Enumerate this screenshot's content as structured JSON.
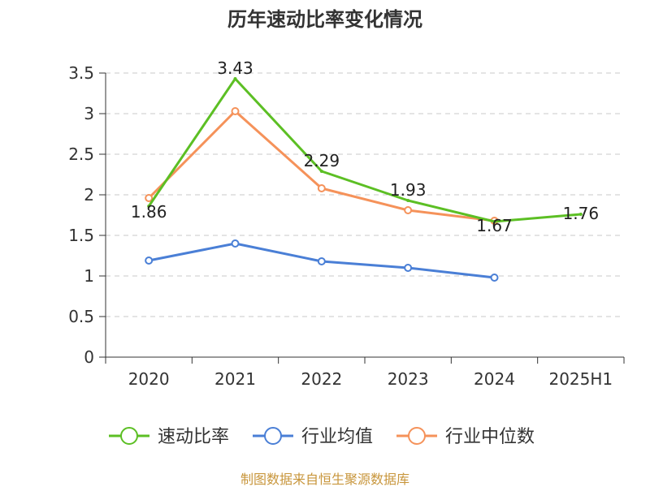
{
  "chart_data": {
    "type": "line",
    "title": "历年速动比率变化情况",
    "xlabel": "",
    "ylabel": "",
    "categories": [
      "2020",
      "2021",
      "2022",
      "2023",
      "2024",
      "2025H1"
    ],
    "ylim": [
      0,
      3.5
    ],
    "yticks": [
      "0",
      "0.5",
      "1",
      "1.5",
      "2",
      "2.5",
      "3",
      "3.5"
    ],
    "grid": true,
    "legend_position": "bottom",
    "series": [
      {
        "name": "速动比率",
        "color": "#5cbf24",
        "values": [
          1.86,
          3.43,
          2.29,
          1.93,
          1.67,
          1.76
        ],
        "data_labels": [
          "1.86",
          "3.43",
          "2.29",
          "1.93",
          "1.67",
          "1.76"
        ],
        "markers": false
      },
      {
        "name": "行业均值",
        "color": "#4a7fd6",
        "values": [
          1.19,
          1.4,
          1.18,
          1.1,
          0.98,
          null
        ],
        "markers": true
      },
      {
        "name": "行业中位数",
        "color": "#f5925a",
        "values": [
          1.96,
          3.03,
          2.08,
          1.81,
          1.68,
          null
        ],
        "markers": true
      }
    ],
    "source": "制图数据来自恒生聚源数据库"
  }
}
